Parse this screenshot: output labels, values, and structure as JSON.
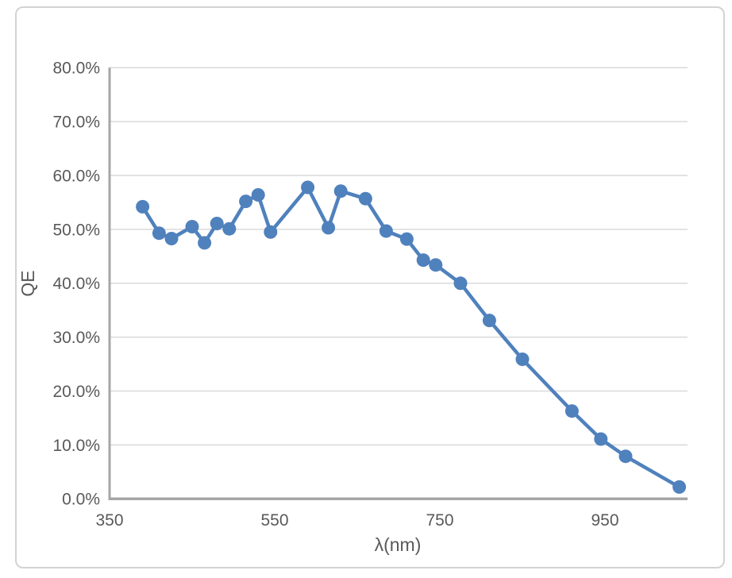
{
  "chart_data": {
    "type": "line",
    "title": "",
    "xlabel": "λ(nm)",
    "ylabel": "QE",
    "xlim": [
      350,
      1050
    ],
    "ylim_percent": [
      0,
      80
    ],
    "grid": true,
    "legend_position": "none",
    "series": [
      {
        "name": "QE",
        "x": [
          390,
          410,
          425,
          450,
          465,
          480,
          495,
          515,
          530,
          545,
          590,
          615,
          630,
          660,
          685,
          710,
          730,
          745,
          775,
          810,
          850,
          910,
          945,
          975,
          1040
        ],
        "y_percent": [
          54.2,
          49.3,
          48.3,
          50.5,
          47.5,
          51.1,
          50.1,
          55.2,
          56.4,
          49.5,
          57.8,
          50.3,
          57.1,
          55.7,
          49.7,
          48.2,
          44.3,
          43.4,
          40.0,
          33.1,
          25.9,
          16.3,
          11.1,
          7.9,
          2.2
        ]
      }
    ],
    "x_ticks": [
      350,
      550,
      750,
      950
    ],
    "x_tick_labels": [
      "350",
      "550",
      "750",
      "950"
    ],
    "y_ticks_percent": [
      0,
      10,
      20,
      30,
      40,
      50,
      60,
      70,
      80
    ],
    "y_tick_labels": [
      "0.0%",
      "10.0%",
      "20.0%",
      "30.0%",
      "40.0%",
      "50.0%",
      "60.0%",
      "70.0%",
      "80.0%"
    ],
    "marker": "circle"
  },
  "colors": {
    "series_line": "#4F81BD",
    "marker_fill": "#4F81BD",
    "gridline": "#D9D9D9",
    "axis_line": "#A6A6A6",
    "tick_text": "#595959",
    "frame_border": "#D3D3D3",
    "background": "#ffffff"
  }
}
